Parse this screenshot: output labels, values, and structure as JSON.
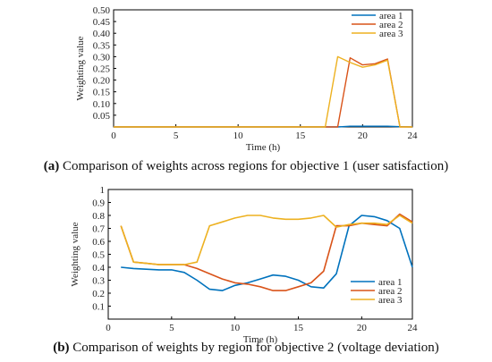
{
  "colors": {
    "area1": "#0072BD",
    "area2": "#D95319",
    "area3": "#EDB120"
  },
  "chart_data": [
    {
      "type": "line",
      "xlabel": "Time (h)",
      "ylabel": "Weighting value",
      "xlim": [
        0,
        24
      ],
      "ylim": [
        0,
        0.5
      ],
      "xticks": [
        0,
        5,
        10,
        15,
        20,
        24
      ],
      "yticks": [
        0.05,
        0.1,
        0.15,
        0.2,
        0.25,
        0.3,
        0.35,
        0.4,
        0.45,
        0.5
      ],
      "ytick_labels": [
        "0.05",
        "0.10",
        "0.15",
        "0.20",
        "0.25",
        "0.30",
        "0.35",
        "0.40",
        "0.45",
        "0.50"
      ],
      "legend_position": "top-right",
      "series": [
        {
          "name": "area 1",
          "x": [
            0,
            17,
            18,
            19,
            20,
            21,
            22,
            23,
            24
          ],
          "y": [
            0,
            0,
            0,
            0.003,
            0.003,
            0.003,
            0.003,
            0.001,
            0
          ]
        },
        {
          "name": "area 2",
          "x": [
            0,
            17,
            18,
            19,
            20,
            21,
            22,
            23,
            24
          ],
          "y": [
            0,
            0,
            0,
            0.295,
            0.265,
            0.27,
            0.29,
            0,
            0
          ]
        },
        {
          "name": "area 3",
          "x": [
            0,
            17,
            18,
            19,
            20,
            21,
            22,
            23,
            24
          ],
          "y": [
            0,
            0,
            0.3,
            0.275,
            0.255,
            0.265,
            0.285,
            0,
            0
          ]
        }
      ],
      "caption_prefix": "(a)",
      "caption_text": " Comparison of weights across regions for objective 1 (user satisfaction)"
    },
    {
      "type": "line",
      "xlabel": "Time (h)",
      "ylabel": "Weighting value",
      "xlim": [
        0,
        24
      ],
      "ylim": [
        0,
        1
      ],
      "xticks": [
        0,
        5,
        10,
        15,
        20,
        24
      ],
      "yticks": [
        0.1,
        0.2,
        0.3,
        0.4,
        0.5,
        0.6,
        0.7,
        0.8,
        0.9,
        1
      ],
      "ytick_labels": [
        "0.1",
        "0.2",
        "0.3",
        "0.4",
        "0.5",
        "0.6",
        "0.7",
        "0.8",
        "0.9",
        "1"
      ],
      "legend_position": "bottom-right",
      "series": [
        {
          "name": "area 1",
          "x": [
            1,
            2,
            3,
            4,
            5,
            6,
            7,
            8,
            9,
            10,
            11,
            12,
            13,
            14,
            15,
            16,
            17,
            18,
            19,
            20,
            21,
            22,
            23,
            24
          ],
          "y": [
            0.4,
            0.39,
            0.385,
            0.38,
            0.38,
            0.36,
            0.3,
            0.23,
            0.22,
            0.26,
            0.28,
            0.31,
            0.34,
            0.33,
            0.3,
            0.25,
            0.24,
            0.35,
            0.72,
            0.8,
            0.79,
            0.76,
            0.7,
            0.4
          ]
        },
        {
          "name": "area 2",
          "x": [
            1,
            2,
            3,
            4,
            5,
            6,
            7,
            8,
            9,
            10,
            11,
            12,
            13,
            14,
            15,
            16,
            17,
            18,
            19,
            20,
            21,
            22,
            23,
            24
          ],
          "y": [
            0.72,
            0.44,
            0.43,
            0.42,
            0.42,
            0.42,
            0.39,
            0.35,
            0.31,
            0.28,
            0.27,
            0.25,
            0.22,
            0.22,
            0.25,
            0.28,
            0.37,
            0.72,
            0.72,
            0.74,
            0.73,
            0.72,
            0.81,
            0.75
          ]
        },
        {
          "name": "area 3",
          "x": [
            1,
            2,
            3,
            4,
            5,
            6,
            7,
            8,
            9,
            10,
            11,
            12,
            13,
            14,
            15,
            16,
            17,
            18,
            19,
            20,
            21,
            22,
            23,
            24
          ],
          "y": [
            0.72,
            0.44,
            0.43,
            0.42,
            0.42,
            0.42,
            0.44,
            0.72,
            0.75,
            0.78,
            0.8,
            0.8,
            0.78,
            0.77,
            0.77,
            0.78,
            0.8,
            0.71,
            0.73,
            0.74,
            0.74,
            0.73,
            0.8,
            0.74
          ]
        }
      ],
      "caption_prefix": "(b)",
      "caption_text": " Comparison of weights by region for objective 2 (voltage deviation)"
    }
  ]
}
